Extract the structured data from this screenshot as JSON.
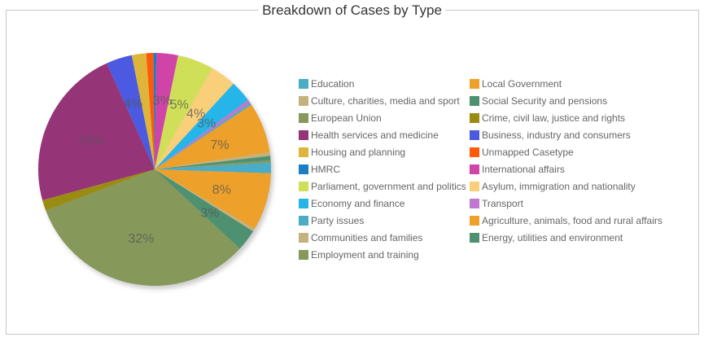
{
  "chart_data": {
    "type": "pie",
    "title": "Breakdown of Cases by Type",
    "legend_position": "right",
    "slices": [
      {
        "label": "Education",
        "value": 1.5,
        "color": "#4bacc6"
      },
      {
        "label": "Local Government",
        "value": 8,
        "color": "#eda02a"
      },
      {
        "label": "Culture, charities, media and sport",
        "value": 0.4,
        "color": "#c4b27e"
      },
      {
        "label": "Social Security and pensions",
        "value": 3,
        "color": "#4e9170"
      },
      {
        "label": "European Union",
        "value": 32.3,
        "color": "#86985a"
      },
      {
        "label": "Crime, civil law, justice and rights",
        "value": 1.5,
        "color": "#9a8c12"
      },
      {
        "label": "Health services and medicine",
        "value": 22.5,
        "color": "#963478"
      },
      {
        "label": "Business, industry and consumers",
        "value": 3.6,
        "color": "#4b5ae0"
      },
      {
        "label": "Housing and planning",
        "value": 2,
        "color": "#deb53a"
      },
      {
        "label": "Unmapped Casetype",
        "value": 1,
        "color": "#ff5a0a"
      },
      {
        "label": "HMRC",
        "value": 0.4,
        "color": "#1a7ec4"
      },
      {
        "label": "International affairs",
        "value": 3,
        "color": "#d044a8"
      },
      {
        "label": "Parliament, government and politics",
        "value": 5,
        "color": "#cfe058"
      },
      {
        "label": "Asylum, immigration and nationality",
        "value": 3.6,
        "color": "#f9cf7a"
      },
      {
        "label": "Economy and finance",
        "value": 3,
        "color": "#26b5e8"
      },
      {
        "label": "Transport",
        "value": 0.5,
        "color": "#c077cf"
      },
      {
        "label": "Party issues",
        "value": 0.3,
        "color": "#4bacc6"
      },
      {
        "label": "Agriculture, animals, food and rural affairs",
        "value": 7,
        "color": "#eda02a"
      },
      {
        "label": "Communities and families",
        "value": 0.5,
        "color": "#c4b27e"
      },
      {
        "label": "Energy, utilities and environment",
        "value": 0.6,
        "color": "#4e9170"
      },
      {
        "label": "Employment and training",
        "value": 0.3,
        "color": "#86985a"
      }
    ]
  }
}
